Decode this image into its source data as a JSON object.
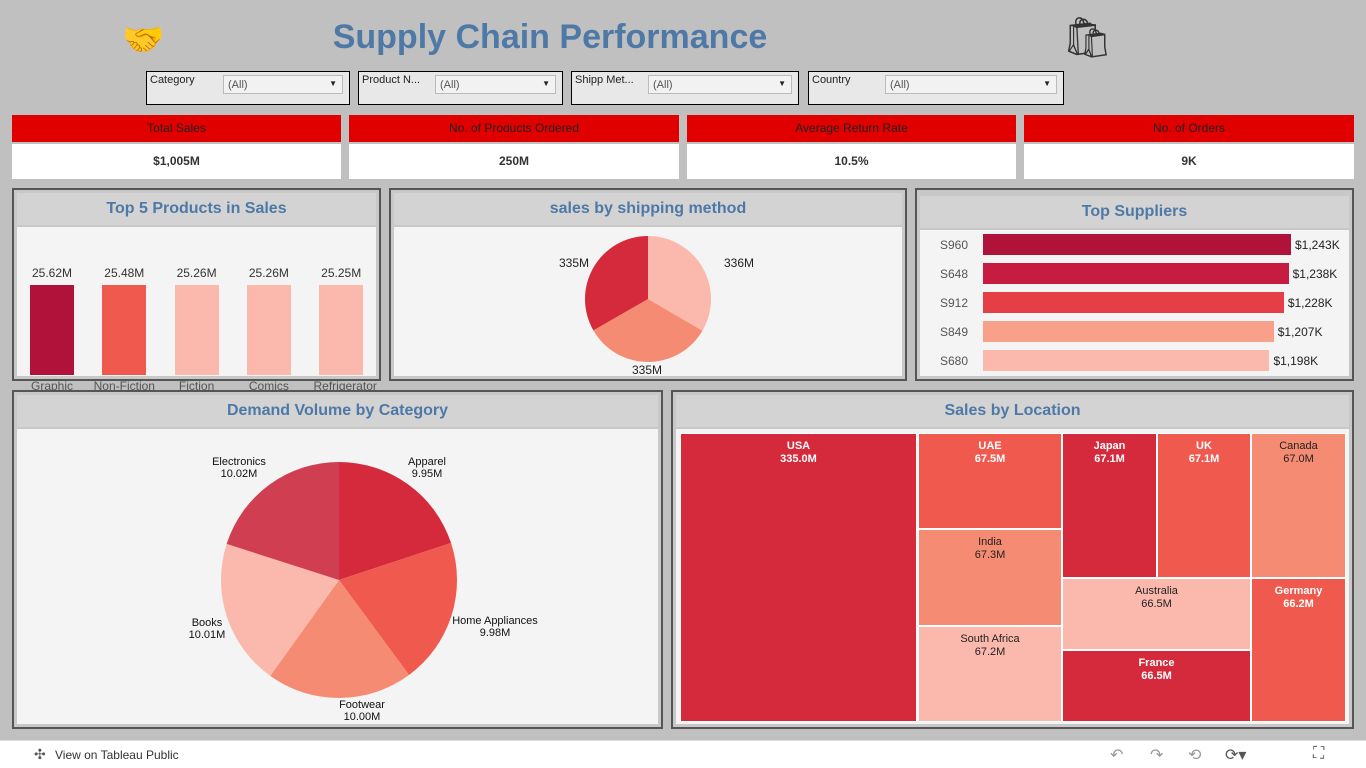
{
  "header": {
    "title": "Supply Chain Performance",
    "left_icon": "handshake-icon",
    "right_icon": "shopping-bags-icon"
  },
  "filters": [
    {
      "label": "Category",
      "value": "(All)"
    },
    {
      "label": "Product N...",
      "value": "(All)"
    },
    {
      "label": "Shipp Met...",
      "value": "(All)"
    },
    {
      "label": "Country",
      "value": "(All)"
    }
  ],
  "kpis": [
    {
      "label": "Total Sales",
      "value": "$1,005M"
    },
    {
      "label": "No. of Products Ordered",
      "value": "250M"
    },
    {
      "label": "Average Return Rate",
      "value": "10.5%"
    },
    {
      "label": "No. of Orders",
      "value": "9K"
    }
  ],
  "colors": {
    "kpi_header": "#e00000",
    "title": "#4e79a7",
    "dark_red": "#b0123a",
    "red": "#d42a3c",
    "coral": "#f05a4e",
    "salmon": "#f68b74",
    "pink": "#fbb9ad"
  },
  "chart_data": [
    {
      "type": "bar",
      "title": "Top 5 Products in Sales",
      "categories": [
        "Graphic Novels",
        "Non-Fiction",
        "Fiction",
        "Comics",
        "Refrigerator"
      ],
      "values": [
        25.62,
        25.48,
        25.26,
        25.26,
        25.25
      ],
      "labels": [
        "25.62M",
        "25.48M",
        "25.26M",
        "25.26M",
        "25.25M"
      ]
    },
    {
      "type": "pie",
      "title": "sales by shipping method",
      "values": [
        336,
        335,
        335
      ],
      "labels": [
        "336M",
        "335M",
        "335M"
      ]
    },
    {
      "type": "bar",
      "orientation": "horizontal",
      "title": "Top Suppliers",
      "categories": [
        "S960",
        "S648",
        "S912",
        "S849",
        "S680"
      ],
      "values": [
        1243,
        1238,
        1228,
        1207,
        1198
      ],
      "labels": [
        "$1,243K",
        "$1,238K",
        "$1,228K",
        "$1,207K",
        "$1,198K"
      ]
    },
    {
      "type": "pie",
      "title": "Demand Volume by Category",
      "categories": [
        "Apparel",
        "Home Appliances",
        "Footwear",
        "Books",
        "Electronics"
      ],
      "values": [
        9.95,
        9.98,
        10.0,
        10.01,
        10.02
      ],
      "labels": [
        "9.95M",
        "9.98M",
        "10.00M",
        "10.01M",
        "10.02M"
      ]
    },
    {
      "type": "treemap",
      "title": "Sales by Location",
      "categories": [
        "USA",
        "UAE",
        "India",
        "South Africa",
        "Japan",
        "UK",
        "Canada",
        "Australia",
        "France",
        "Germany"
      ],
      "values": [
        335.0,
        67.5,
        67.3,
        67.2,
        67.1,
        67.1,
        67.0,
        66.5,
        66.5,
        66.2
      ],
      "labels": [
        "335.0M",
        "67.5M",
        "67.3M",
        "67.2M",
        "67.1M",
        "67.1M",
        "67.0M",
        "66.5M",
        "66.5M",
        "66.2M"
      ]
    }
  ],
  "footer": {
    "link": "View on Tableau Public"
  }
}
